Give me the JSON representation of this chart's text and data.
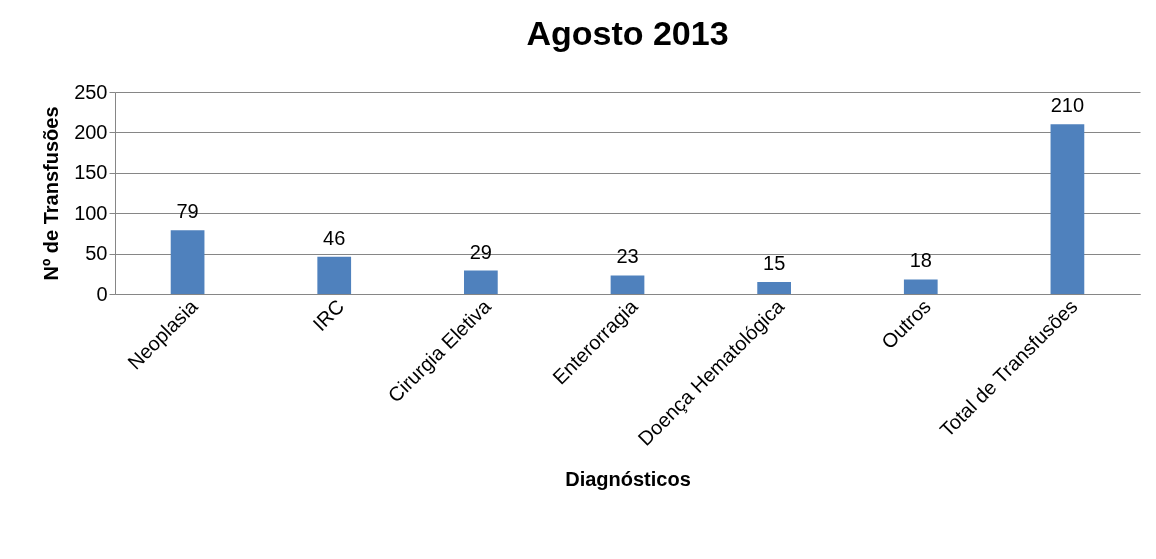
{
  "chart_data": {
    "type": "bar",
    "title": "Agosto 2013",
    "xlabel": "Diagnósticos",
    "ylabel": "Nº de Transfusões",
    "categories": [
      "Neoplasia",
      "IRC",
      "Cirurgia Eletiva",
      "Enterorragia",
      "Doença Hematológica",
      "Outros",
      "Total de Transfusões"
    ],
    "values": [
      79,
      46,
      29,
      23,
      15,
      18,
      210
    ],
    "color": "#4f81bd",
    "ylim": [
      0,
      250
    ],
    "yticks": [
      0,
      50,
      100,
      150,
      200,
      250
    ],
    "grid": "y",
    "data_labels": true
  }
}
